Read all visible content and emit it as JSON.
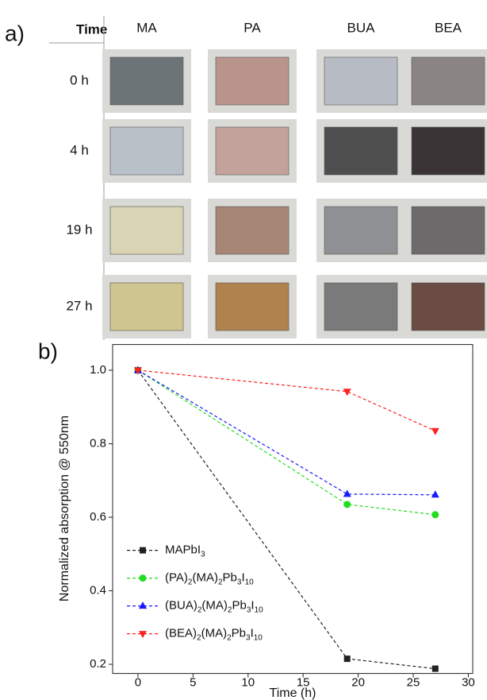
{
  "panel_a": {
    "label": "a)",
    "header": "Time",
    "columns": [
      "MA",
      "PA",
      "BUA",
      "BEA"
    ],
    "rows": [
      "0 h",
      "4 h",
      "19 h",
      "27 h"
    ]
  },
  "chart_data": {
    "type": "line",
    "label": "b)",
    "x_label": "Time (h)",
    "y_label": "Normalized absorption @ 550nm",
    "x": [
      0,
      19,
      27
    ],
    "series": [
      {
        "name": "MAPbI3",
        "color": "#222222",
        "marker": "square",
        "values": [
          1.0,
          0.215,
          0.188
        ]
      },
      {
        "name": "(PA)2(MA)2Pb3I10",
        "color": "#22dd22",
        "marker": "circle",
        "values": [
          1.0,
          0.635,
          0.607
        ]
      },
      {
        "name": "(BUA)2(MA)2Pb3I10",
        "color": "#1a1aff",
        "marker": "triangle-up",
        "values": [
          1.0,
          0.663,
          0.661
        ]
      },
      {
        "name": "(BEA)2(MA)2Pb3I10",
        "color": "#ff2020",
        "marker": "triangle-down",
        "values": [
          1.0,
          0.942,
          0.835
        ]
      }
    ],
    "xlim": [
      -2.3,
      30.4
    ],
    "ylim": [
      0.175,
      1.07
    ],
    "xticks": [
      0,
      5,
      10,
      15,
      20,
      25,
      30
    ],
    "yticks": [
      0.2,
      0.4,
      0.6,
      0.8,
      {
        "value": 1,
        "label": "1.0"
      }
    ],
    "line_style": "dashed",
    "legend": "lower left"
  }
}
